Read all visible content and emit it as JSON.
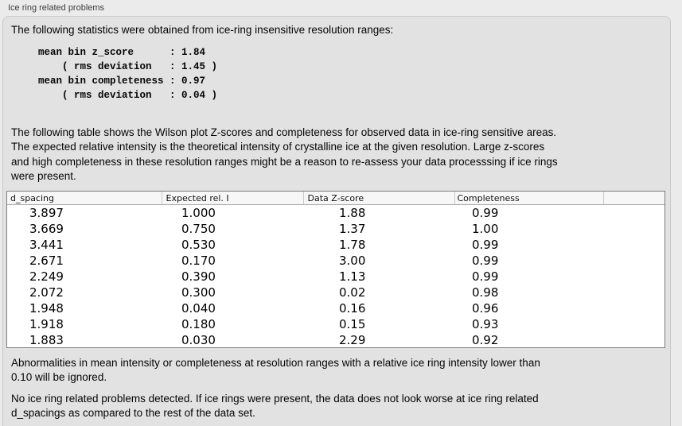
{
  "section": {
    "title": "Ice ring related problems"
  },
  "stats": {
    "intro": "The following statistics were obtained from ice-ring insensitive resolution ranges:",
    "block": "mean bin z_score      : 1.84\n    ( rms deviation   : 1.45 )\nmean bin completeness : 0.97\n    ( rms deviation   : 0.04 )",
    "mean_bin_z_score": "1.84",
    "z_score_rms_deviation": "1.45",
    "mean_bin_completeness": "0.97",
    "completeness_rms_deviation": "0.04"
  },
  "table_section": {
    "intro": "The following table shows the Wilson plot Z-scores and completeness for observed data in ice-ring sensitive areas.\nThe expected relative intensity is the theoretical intensity of crystalline ice at the given resolution. Large z-scores\nand high completeness in these resolution ranges might be a reason to re-assess your data processsing if ice rings\nwere present.",
    "columns": [
      "d_spacing",
      "Expected rel. I",
      "Data Z-score",
      "Completeness",
      ""
    ],
    "rows": [
      [
        "3.897",
        "1.000",
        "1.88",
        "0.99"
      ],
      [
        "3.669",
        "0.750",
        "1.37",
        "1.00"
      ],
      [
        "3.441",
        "0.530",
        "1.78",
        "0.99"
      ],
      [
        "2.671",
        "0.170",
        "3.00",
        "0.99"
      ],
      [
        "2.249",
        "0.390",
        "1.13",
        "0.99"
      ],
      [
        "2.072",
        "0.300",
        "0.02",
        "0.98"
      ],
      [
        "1.948",
        "0.040",
        "0.16",
        "0.96"
      ],
      [
        "1.918",
        "0.180",
        "0.15",
        "0.93"
      ],
      [
        "1.883",
        "0.030",
        "2.29",
        "0.92"
      ]
    ]
  },
  "notes": {
    "ignore": "Abnormalities in mean intensity or completeness at resolution ranges with a relative ice ring intensity lower than\n0.10 will be ignored.",
    "conclusion": "No ice ring related problems detected. If ice rings were present, the data does not look worse at ice ring related\nd_spacings as compared to the rest of the data set."
  },
  "colors": {
    "outer_background": "#ebebeb",
    "panel_background": "#e2e2e2",
    "panel_border": "#c9c9c9",
    "table_border": "#7d7d7d",
    "table_header_background": "#f7f7f7",
    "text": "#050505"
  }
}
